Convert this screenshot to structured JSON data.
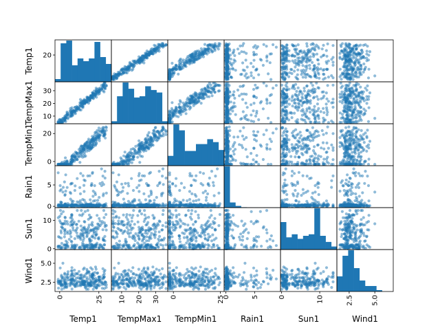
{
  "chart_data": {
    "type": "scatter",
    "title": "",
    "variables": [
      "Temp1",
      "TempMax1",
      "TempMin1",
      "Rain1",
      "Sun1",
      "Wind1"
    ],
    "point_color": "#1f77b4",
    "point_alpha": 0.5,
    "ranges": {
      "Temp1": [
        -3,
        33
      ],
      "TempMax1": [
        4,
        37
      ],
      "TempMin1": [
        -3,
        27
      ],
      "Rain1": [
        -0.3,
        9.5
      ],
      "Sun1": [
        -0.3,
        14.5
      ],
      "Wind1": [
        1.3,
        6.8
      ]
    },
    "ticks": {
      "Temp1": [
        0,
        25
      ],
      "TempMax1": [
        10,
        20,
        30
      ],
      "TempMin1": [
        0,
        25
      ],
      "Rain1": [
        0,
        5
      ],
      "Sun1": [
        0,
        10
      ],
      "Wind1": [
        2.5,
        5.0
      ]
    },
    "ytick_labels": {
      "Temp1": [
        "20"
      ],
      "TempMax1": [
        "10",
        "20",
        "30"
      ],
      "TempMin1": [
        "0",
        "20"
      ],
      "Rain1": [
        "0",
        "5"
      ],
      "Sun1": [
        "0",
        "10"
      ],
      "Wind1": [
        "2.5",
        "5.0"
      ]
    },
    "xtick_labels": {
      "Temp1": [
        "0",
        "25"
      ],
      "TempMax1": [
        "10",
        "20",
        "30"
      ],
      "TempMin1": [
        "0",
        "25"
      ],
      "Rain1": [
        "0",
        "5"
      ],
      "Sun1": [
        "0",
        "10"
      ],
      "Wind1": [
        "2.5",
        "5.0"
      ]
    },
    "histograms": {
      "Temp1": [
        2,
        28,
        30,
        12,
        17,
        15,
        17,
        29,
        18,
        13
      ],
      "TempMax1": [
        2,
        22,
        33,
        28,
        21,
        22,
        30,
        27,
        25,
        2
      ],
      "TempMin1": [
        10,
        42,
        36,
        15,
        15,
        22,
        22,
        27,
        24,
        16
      ],
      "Rain1": [
        48,
        6,
        2,
        0.5,
        0.3,
        0.2,
        0,
        0.4,
        0,
        0.2
      ],
      "Sun1": [
        18,
        8,
        10,
        7,
        9,
        10,
        27,
        9,
        5,
        2
      ],
      "Wind1": [
        11,
        26,
        30,
        17,
        8,
        4,
        4,
        1,
        0,
        0
      ]
    },
    "n_points": 260
  }
}
